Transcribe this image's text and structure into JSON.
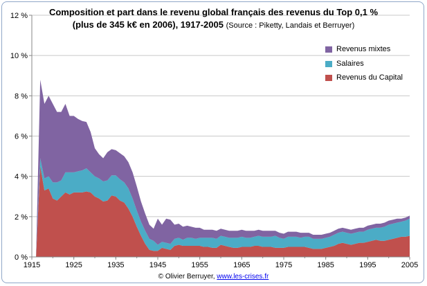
{
  "chart_data": {
    "type": "area",
    "stacked": true,
    "title_line1": "Composition et part dans le revenu global français des revenus du Top 0,1 %",
    "title_line2": "(plus de 345 k€ en 2006), 1917-2005",
    "source": "(Source : Piketty, Landais et Berruyer)",
    "credit_prefix": "© Olivier Berruyer,",
    "credit_link": "www.les-crises.fr",
    "xlim": [
      1915,
      2005
    ],
    "ylim": [
      0,
      12
    ],
    "x_ticks": [
      "1915",
      "1925",
      "1935",
      "1945",
      "1955",
      "1965",
      "1975",
      "1985",
      "1995",
      "2005"
    ],
    "y_ticks": [
      "0 %",
      "2 %",
      "4 %",
      "6 %",
      "8 %",
      "10 %",
      "12 %"
    ],
    "grid": true,
    "legend_position": "top-right",
    "x": [
      1915,
      1916,
      1917,
      1918,
      1919,
      1920,
      1921,
      1922,
      1923,
      1924,
      1925,
      1926,
      1927,
      1928,
      1929,
      1930,
      1931,
      1932,
      1933,
      1934,
      1935,
      1936,
      1937,
      1938,
      1939,
      1940,
      1941,
      1942,
      1943,
      1944,
      1945,
      1946,
      1947,
      1948,
      1949,
      1950,
      1951,
      1952,
      1953,
      1954,
      1955,
      1956,
      1957,
      1958,
      1959,
      1960,
      1961,
      1962,
      1963,
      1964,
      1965,
      1966,
      1967,
      1968,
      1969,
      1970,
      1971,
      1972,
      1973,
      1974,
      1975,
      1976,
      1977,
      1978,
      1979,
      1980,
      1981,
      1982,
      1983,
      1984,
      1985,
      1986,
      1987,
      1988,
      1989,
      1990,
      1991,
      1992,
      1993,
      1994,
      1995,
      1996,
      1997,
      1998,
      1999,
      2000,
      2001,
      2002,
      2003,
      2004,
      2005
    ],
    "series": [
      {
        "name": "Revenus du Capital",
        "color": "#c0504d",
        "values": [
          0,
          0,
          4.5,
          3.3,
          3.4,
          2.9,
          2.8,
          3.0,
          3.2,
          3.1,
          3.2,
          3.2,
          3.2,
          3.25,
          3.2,
          3.0,
          2.9,
          2.75,
          2.8,
          3.05,
          3.0,
          2.8,
          2.7,
          2.4,
          2.0,
          1.5,
          1.05,
          0.65,
          0.35,
          0.3,
          0.3,
          0.45,
          0.4,
          0.35,
          0.55,
          0.6,
          0.55,
          0.55,
          0.55,
          0.55,
          0.55,
          0.5,
          0.5,
          0.45,
          0.45,
          0.6,
          0.55,
          0.5,
          0.45,
          0.45,
          0.5,
          0.5,
          0.5,
          0.55,
          0.55,
          0.5,
          0.5,
          0.5,
          0.45,
          0.45,
          0.45,
          0.5,
          0.5,
          0.5,
          0.5,
          0.5,
          0.45,
          0.4,
          0.4,
          0.4,
          0.45,
          0.5,
          0.55,
          0.65,
          0.7,
          0.65,
          0.6,
          0.65,
          0.7,
          0.7,
          0.75,
          0.8,
          0.85,
          0.8,
          0.8,
          0.85,
          0.9,
          0.95,
          1.0,
          1.0,
          1.05
        ]
      },
      {
        "name": "Salaires",
        "color": "#4bacc6",
        "values": [
          0,
          0,
          0.4,
          0.6,
          0.6,
          0.8,
          0.9,
          0.8,
          1.0,
          1.1,
          1.0,
          1.05,
          1.1,
          1.15,
          1.0,
          1.0,
          1.0,
          1.0,
          1.0,
          1.0,
          1.05,
          1.05,
          1.0,
          1.0,
          0.9,
          0.8,
          0.7,
          0.65,
          0.55,
          0.5,
          0.3,
          0.3,
          0.3,
          0.3,
          0.35,
          0.35,
          0.3,
          0.4,
          0.4,
          0.35,
          0.4,
          0.45,
          0.45,
          0.5,
          0.45,
          0.45,
          0.45,
          0.45,
          0.5,
          0.5,
          0.5,
          0.45,
          0.45,
          0.45,
          0.5,
          0.5,
          0.5,
          0.5,
          0.6,
          0.5,
          0.45,
          0.5,
          0.5,
          0.5,
          0.45,
          0.5,
          0.55,
          0.5,
          0.5,
          0.5,
          0.5,
          0.5,
          0.55,
          0.55,
          0.55,
          0.55,
          0.55,
          0.55,
          0.55,
          0.55,
          0.6,
          0.6,
          0.6,
          0.65,
          0.7,
          0.75,
          0.75,
          0.75,
          0.75,
          0.8,
          0.85
        ]
      },
      {
        "name": "Revenus mixtes",
        "color": "#8064a2",
        "values": [
          0,
          0,
          3.9,
          3.7,
          4.0,
          3.9,
          3.5,
          3.4,
          3.4,
          2.8,
          2.8,
          2.6,
          2.45,
          2.3,
          2.0,
          1.4,
          1.2,
          1.15,
          1.4,
          1.3,
          1.25,
          1.3,
          1.3,
          1.3,
          1.3,
          1.2,
          1.0,
          0.85,
          0.7,
          0.6,
          1.3,
          0.85,
          1.2,
          1.2,
          0.7,
          0.7,
          0.65,
          0.6,
          0.55,
          0.55,
          0.5,
          0.4,
          0.4,
          0.4,
          0.4,
          0.35,
          0.35,
          0.35,
          0.35,
          0.35,
          0.35,
          0.35,
          0.35,
          0.3,
          0.3,
          0.3,
          0.3,
          0.3,
          0.25,
          0.25,
          0.25,
          0.25,
          0.25,
          0.25,
          0.25,
          0.2,
          0.2,
          0.2,
          0.2,
          0.2,
          0.2,
          0.2,
          0.2,
          0.2,
          0.2,
          0.2,
          0.2,
          0.2,
          0.2,
          0.2,
          0.2,
          0.2,
          0.2,
          0.2,
          0.2,
          0.2,
          0.2,
          0.2,
          0.15,
          0.15,
          0.15
        ]
      }
    ]
  }
}
